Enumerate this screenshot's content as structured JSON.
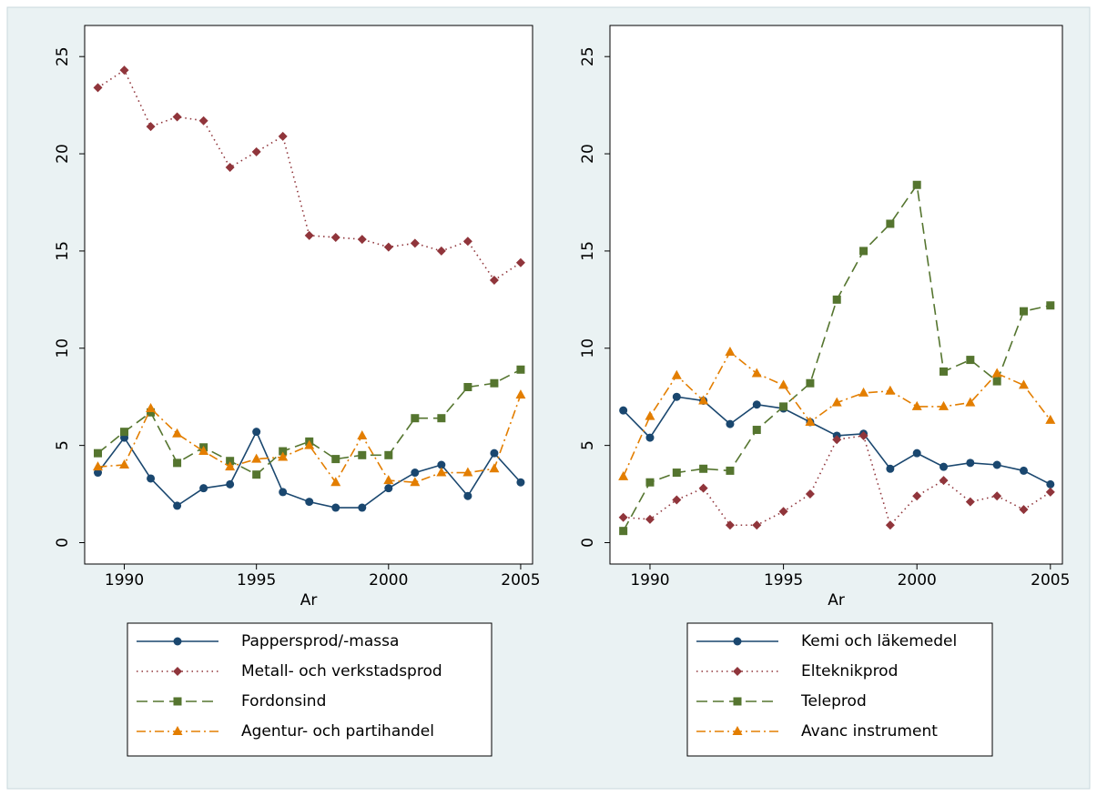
{
  "chart_data": [
    {
      "type": "line",
      "x": [
        1989,
        1990,
        1991,
        1992,
        1993,
        1994,
        1995,
        1996,
        1997,
        1998,
        1999,
        2000,
        2001,
        2002,
        2003,
        2004,
        2005
      ],
      "xlabel": "Ar",
      "xlim": [
        1988.5,
        2005.45
      ],
      "xticks": [
        1990,
        1995,
        2000,
        2005
      ],
      "ylim": [
        -1.1,
        26.6
      ],
      "yticks": [
        0,
        5,
        10,
        15,
        20,
        25
      ],
      "grid": false,
      "legend": "bottom",
      "series": [
        {
          "name": "Pappersprod/-massa",
          "color": "#1a476f",
          "marker": "circle",
          "dash": "solid",
          "values": [
            3.6,
            5.4,
            3.3,
            1.9,
            2.8,
            3.0,
            5.7,
            2.6,
            2.1,
            1.8,
            1.8,
            2.8,
            3.6,
            4.0,
            2.4,
            4.6,
            3.1
          ]
        },
        {
          "name": "Metall- och verkstadsprod",
          "color": "#90353b",
          "marker": "diamond",
          "dash": "dot",
          "values": [
            23.4,
            24.3,
            21.4,
            21.9,
            21.7,
            19.3,
            20.1,
            20.9,
            15.8,
            15.7,
            15.6,
            15.2,
            15.4,
            15.0,
            15.5,
            13.5,
            14.4
          ]
        },
        {
          "name": "Fordonsind",
          "color": "#55752f",
          "marker": "square",
          "dash": "longdash",
          "values": [
            4.6,
            5.7,
            6.7,
            4.1,
            4.9,
            4.2,
            3.5,
            4.7,
            5.2,
            4.3,
            4.5,
            4.5,
            6.4,
            6.4,
            8.0,
            8.2,
            8.9
          ]
        },
        {
          "name": "Agentur- och partihandel",
          "color": "#e37e00",
          "marker": "triangle",
          "dash": "dashdot",
          "values": [
            3.9,
            4.0,
            6.9,
            5.6,
            4.7,
            3.9,
            4.3,
            4.4,
            5.0,
            3.1,
            5.5,
            3.2,
            3.1,
            3.6,
            3.6,
            3.8,
            7.6
          ]
        }
      ]
    },
    {
      "type": "line",
      "x": [
        1989,
        1990,
        1991,
        1992,
        1993,
        1994,
        1995,
        1996,
        1997,
        1998,
        1999,
        2000,
        2001,
        2002,
        2003,
        2004,
        2005
      ],
      "xlabel": "Ar",
      "xlim": [
        1988.5,
        2005.45
      ],
      "xticks": [
        1990,
        1995,
        2000,
        2005
      ],
      "ylim": [
        -1.1,
        26.6
      ],
      "yticks": [
        0,
        5,
        10,
        15,
        20,
        25
      ],
      "grid": false,
      "legend": "bottom",
      "series": [
        {
          "name": "Kemi och läkemedel",
          "color": "#1a476f",
          "marker": "circle",
          "dash": "solid",
          "values": [
            6.8,
            5.4,
            7.5,
            7.3,
            6.1,
            7.1,
            6.9,
            6.2,
            5.5,
            5.6,
            3.8,
            4.6,
            3.9,
            4.1,
            4.0,
            3.7,
            3.0
          ]
        },
        {
          "name": "Elteknikprod",
          "color": "#90353b",
          "marker": "diamond",
          "dash": "dot",
          "values": [
            1.3,
            1.2,
            2.2,
            2.8,
            0.9,
            0.9,
            1.6,
            2.5,
            5.3,
            5.5,
            0.9,
            2.4,
            3.2,
            2.1,
            2.4,
            1.7,
            2.6
          ]
        },
        {
          "name": "Teleprod",
          "color": "#55752f",
          "marker": "square",
          "dash": "longdash",
          "values": [
            0.6,
            3.1,
            3.6,
            3.8,
            3.7,
            5.8,
            7.0,
            8.2,
            12.5,
            15.0,
            16.4,
            18.4,
            8.8,
            9.4,
            8.3,
            11.9,
            12.2
          ]
        },
        {
          "name": "Avanc instrument",
          "color": "#e37e00",
          "marker": "triangle",
          "dash": "dashdot",
          "values": [
            3.4,
            6.5,
            8.6,
            7.3,
            9.8,
            8.7,
            8.1,
            6.2,
            7.2,
            7.7,
            7.8,
            7.0,
            7.0,
            7.2,
            8.7,
            8.1,
            6.3
          ]
        }
      ]
    }
  ]
}
